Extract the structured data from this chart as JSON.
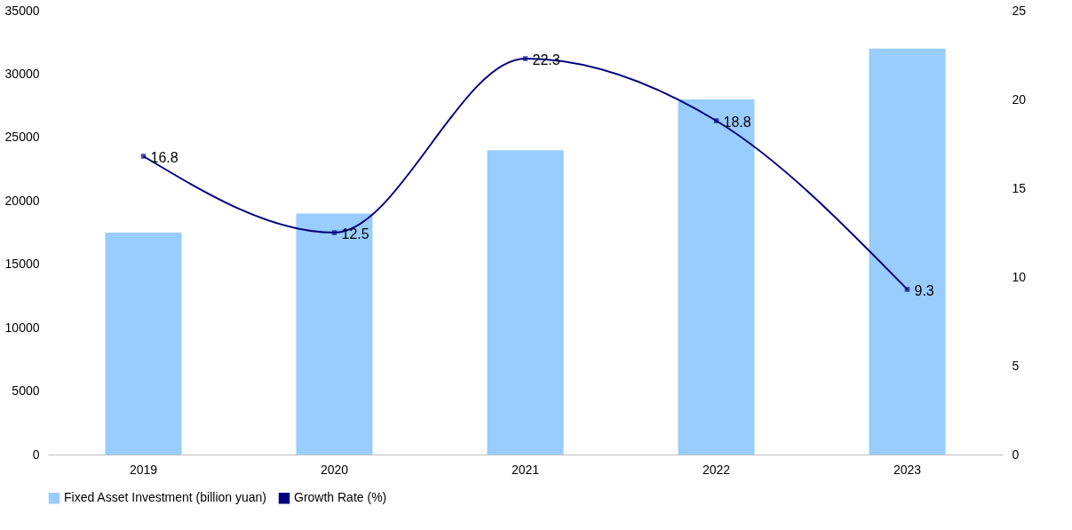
{
  "chart_data": {
    "type": "bar",
    "categories": [
      "2019",
      "2020",
      "2021",
      "2022",
      "2023"
    ],
    "series": [
      {
        "name": "Fixed Asset Investment (billion yuan)",
        "color": "#99ccff",
        "values": [
          17500,
          19000,
          24000,
          28000,
          32000
        ]
      },
      {
        "name": "Growth Rate (%)",
        "type": "line",
        "axis": "y2",
        "color": "#000080",
        "marker": "square",
        "data_labels": true,
        "values": [
          16.8,
          12.5,
          22.3,
          18.8,
          9.3
        ]
      }
    ],
    "ylim": [
      0,
      35000
    ],
    "yticks": [
      0,
      5000,
      10000,
      15000,
      20000,
      25000,
      30000,
      35000
    ],
    "y2lim": [
      0,
      25
    ],
    "y2ticks": [
      0,
      5,
      10,
      15,
      20,
      25
    ],
    "grid": false,
    "legend": "bottom"
  }
}
